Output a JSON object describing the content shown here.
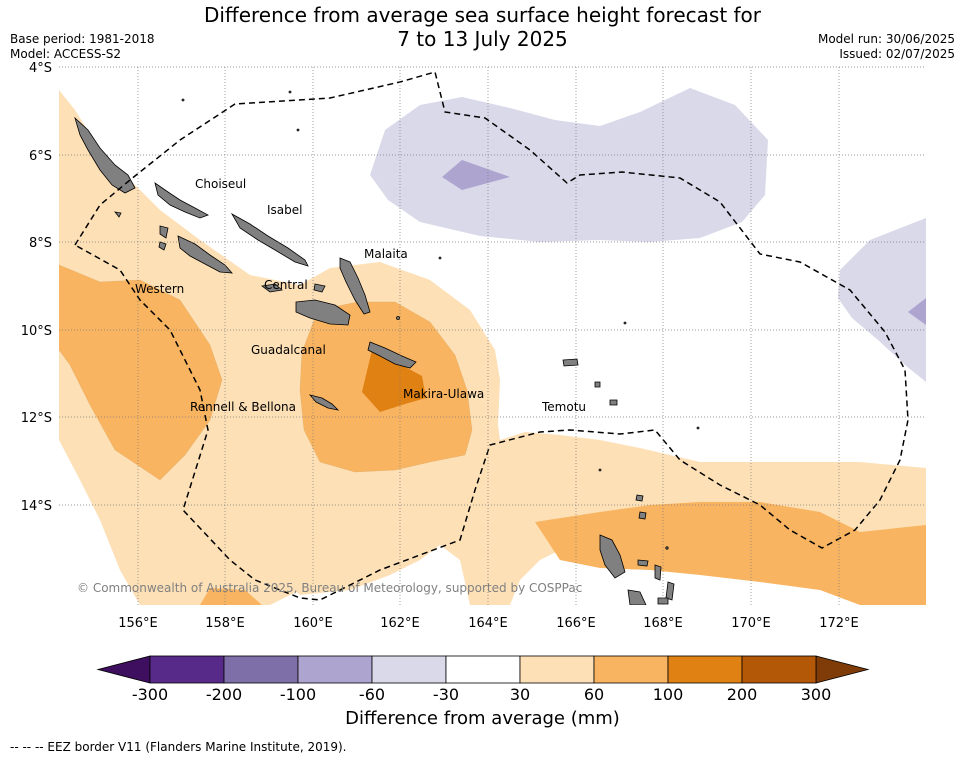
{
  "title": {
    "line1": "Difference from average sea surface height forecast for",
    "line2": "7 to 13 July 2025"
  },
  "meta_left": {
    "base_period": "Base period: 1981-2018",
    "model": "Model: ACCESS-S2"
  },
  "meta_right": {
    "model_run": "Model run: 30/06/2025",
    "issued": "Issued: 02/07/2025"
  },
  "lat_labels": [
    "4°S",
    "6°S",
    "8°S",
    "10°S",
    "12°S",
    "14°S"
  ],
  "lon_labels": [
    "156°E",
    "158°E",
    "160°E",
    "162°E",
    "164°E",
    "166°E",
    "168°E",
    "170°E",
    "172°E"
  ],
  "places": {
    "choiseul": "Choiseul",
    "isabel": "Isabel",
    "malaita": "Malaita",
    "western": "Western",
    "central": "Central",
    "guadalcanal": "Guadalcanal",
    "makira": "Makira-Ulawa",
    "rennell": "Rennell & Bellona",
    "temotu": "Temotu"
  },
  "copyright": "© Commonwealth of Australia 2025, Bureau of Meteorology, supported by COSPPac",
  "colorbar": {
    "ticks": [
      "-300",
      "-200",
      "-100",
      "-60",
      "-30",
      "30",
      "60",
      "100",
      "200",
      "300"
    ],
    "colors": [
      "#572a8a",
      "#7f6fa9",
      "#ada4cf",
      "#d9d9ea",
      "#ffffff",
      "#fde0b6",
      "#f8b460",
      "#e08113",
      "#b35806"
    ],
    "under_color": "#3d0f5e",
    "over_color": "#7f3b08",
    "title": "Difference from average (mm)"
  },
  "land_color": "#808080",
  "footnote": "--  --  -- EEZ border V11 (Flanders Marine Institute, 2019)."
}
